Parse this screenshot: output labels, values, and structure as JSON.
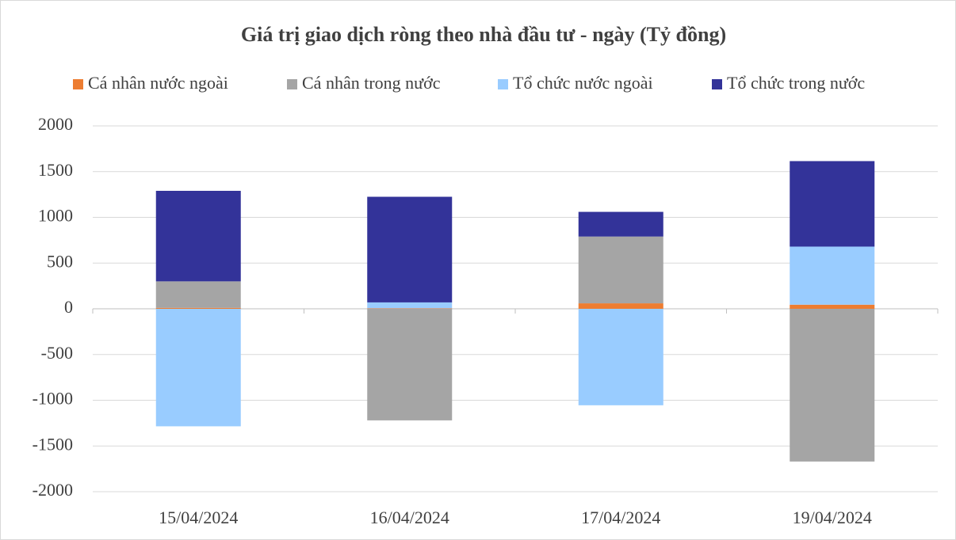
{
  "chart_data": {
    "type": "stacked_bar",
    "title": "Giá trị giao dịch ròng theo nhà đầu tư - ngày (Tỷ đồng)",
    "categories": [
      "15/04/2024",
      "16/04/2024",
      "17/04/2024",
      "19/04/2024"
    ],
    "series": [
      {
        "name": "Cá nhân nước ngoài",
        "color": "#ed7d31",
        "values": [
          10,
          5,
          60,
          45
        ]
      },
      {
        "name": "Cá nhân trong nước",
        "color": "#a5a5a5",
        "values": [
          290,
          -1220,
          730,
          -1670
        ]
      },
      {
        "name": "Tổ chức nước ngoài",
        "color": "#99ccff",
        "values": [
          -1285,
          65,
          -1055,
          635
        ]
      },
      {
        "name": "Tổ chức trong nước",
        "color": "#333399",
        "values": [
          990,
          1155,
          270,
          935
        ]
      }
    ],
    "ylim": [
      -2000,
      2000
    ],
    "yticks": [
      -2000,
      -1500,
      -1000,
      -500,
      0,
      500,
      1000,
      1500,
      2000
    ],
    "grid": true,
    "legend": "top"
  }
}
